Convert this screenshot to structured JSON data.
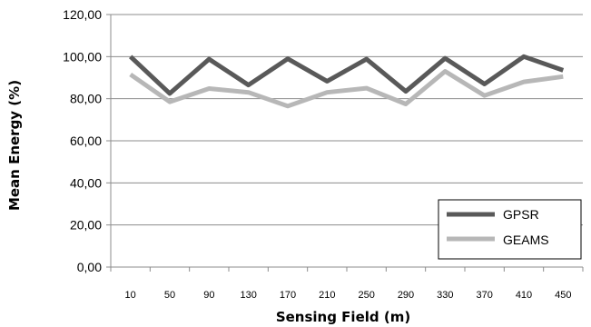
{
  "chart_data": {
    "type": "line",
    "categories": [
      "10",
      "50",
      "90",
      "130",
      "170",
      "210",
      "250",
      "290",
      "330",
      "370",
      "410",
      "450"
    ],
    "series": [
      {
        "name": "GPSR",
        "color": "#595959",
        "values": [
          100.0,
          82.5,
          98.8,
          86.5,
          99.0,
          88.3,
          98.8,
          83.5,
          99.2,
          87.0,
          100.0,
          93.5
        ]
      },
      {
        "name": "GEAMS",
        "color": "#b7b7b7",
        "values": [
          91.5,
          78.5,
          84.8,
          83.0,
          76.5,
          83.0,
          85.0,
          77.5,
          93.0,
          81.5,
          88.0,
          90.5
        ]
      }
    ],
    "y_ticks": [
      "0,00",
      "20,00",
      "40,00",
      "60,00",
      "80,00",
      "100,00",
      "120,00"
    ],
    "ylim": [
      0,
      120
    ],
    "xlabel": "Sensing Field (m)",
    "ylabel": "Mean Energy (%)",
    "grid": "horizontal",
    "legend_position": "bottom-right"
  }
}
